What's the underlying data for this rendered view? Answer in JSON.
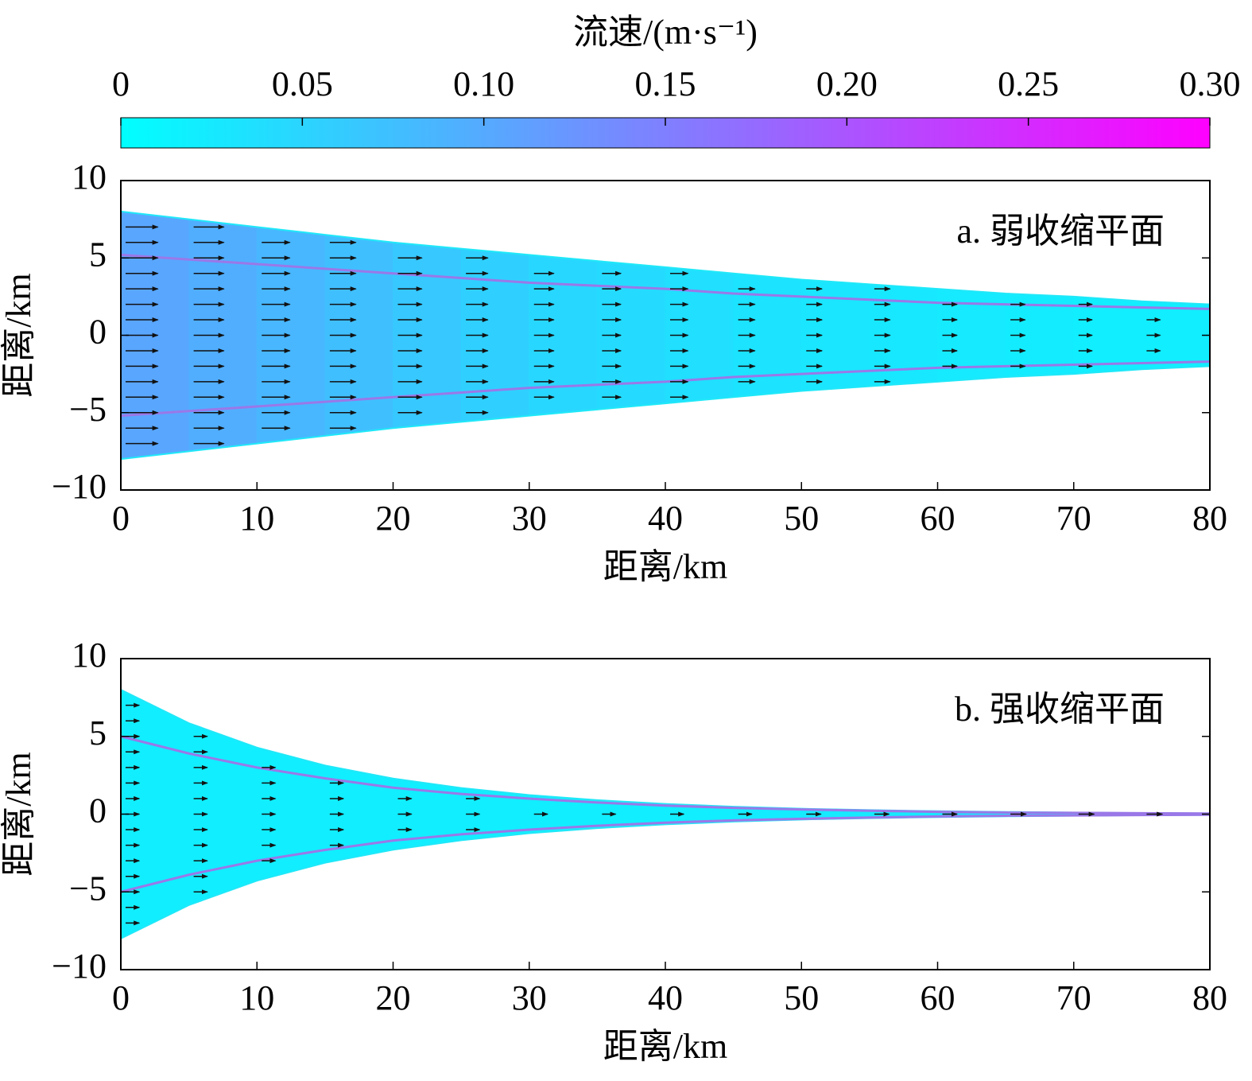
{
  "colorbar": {
    "title": "流速/(m·s⁻¹)",
    "lim": [
      0,
      0.3
    ],
    "colors": [
      "#00ffff",
      "#ff00ff"
    ],
    "ticks": [
      0,
      0.05,
      {
        "value": 0.1,
        "label": "0.10"
      },
      0.15,
      {
        "value": 0.2,
        "label": "0.20"
      },
      0.25,
      {
        "value": 0.3,
        "label": "0.30"
      }
    ]
  },
  "chart_data": [
    {
      "type": "channel",
      "annotation": "a. 弱收缩平面",
      "xlabel": "距离/km",
      "ylabel": "距离/km",
      "xlim": [
        0,
        80
      ],
      "ylim": [
        -10,
        10
      ],
      "xticks": [
        0,
        10,
        20,
        30,
        40,
        50,
        60,
        70,
        80
      ],
      "yticks": [
        {
          "value": -10,
          "label": "−10"
        },
        {
          "value": -5,
          "label": "−5"
        },
        0,
        5,
        10
      ],
      "x": [
        0,
        5,
        10,
        15,
        20,
        25,
        30,
        35,
        40,
        45,
        50,
        55,
        60,
        65,
        70,
        75,
        80
      ],
      "series": [
        {
          "color": "#20e8f8",
          "values": [
            8,
            7.5,
            7,
            6.5,
            6,
            5.6,
            5.2,
            4.8,
            4.4,
            4.0,
            3.6,
            3.3,
            3.0,
            2.7,
            2.5,
            2.2,
            2.0
          ]
        },
        {
          "color": "#9a78e8",
          "values": [
            5.2,
            4.9,
            4.6,
            4.3,
            4.0,
            3.7,
            3.4,
            3.2,
            3.0,
            2.7,
            2.5,
            2.3,
            2.1,
            2.0,
            1.9,
            1.8,
            1.7
          ]
        }
      ],
      "speed": [
        0.11,
        0.1,
        0.09,
        0.08,
        0.07,
        0.06,
        0.05,
        0.045,
        0.04,
        0.035,
        0.03,
        0.03,
        0.025,
        0.025,
        0.02,
        0.02,
        0.02
      ]
    },
    {
      "type": "channel",
      "annotation": "b. 强收缩平面",
      "xlabel": "距离/km",
      "ylabel": "距离/km",
      "xlim": [
        0,
        80
      ],
      "ylim": [
        -10,
        10
      ],
      "xticks": [
        0,
        10,
        20,
        30,
        40,
        50,
        60,
        70,
        80
      ],
      "yticks": [
        {
          "value": -10,
          "label": "−10"
        },
        {
          "value": -5,
          "label": "−5"
        },
        0,
        5,
        10
      ],
      "x": [
        0,
        5,
        10,
        15,
        20,
        25,
        30,
        35,
        40,
        45,
        50,
        55,
        60,
        65,
        70,
        75,
        80
      ],
      "series": [
        {
          "color": "#20e8f8",
          "values": [
            8,
            5.85,
            4.28,
            3.13,
            2.29,
            1.68,
            1.23,
            0.9,
            0.66,
            0.48,
            0.35,
            0.26,
            0.19,
            0.14,
            0.1,
            0.07,
            0.05
          ]
        },
        {
          "color": "#9a78e8",
          "values": [
            5,
            3.9,
            3.0,
            2.3,
            1.7,
            1.3,
            1.0,
            0.75,
            0.55,
            0.4,
            0.3,
            0.22,
            0.15,
            0.1,
            0.08,
            0.06,
            0.04
          ]
        }
      ],
      "speed": [
        0.02,
        0.02,
        0.02,
        0.02,
        0.02,
        0.02,
        0.02,
        0.02,
        0.02,
        0.02,
        0.025,
        0.025,
        0.025,
        0.03,
        0.03,
        0.03,
        0.03
      ]
    }
  ]
}
